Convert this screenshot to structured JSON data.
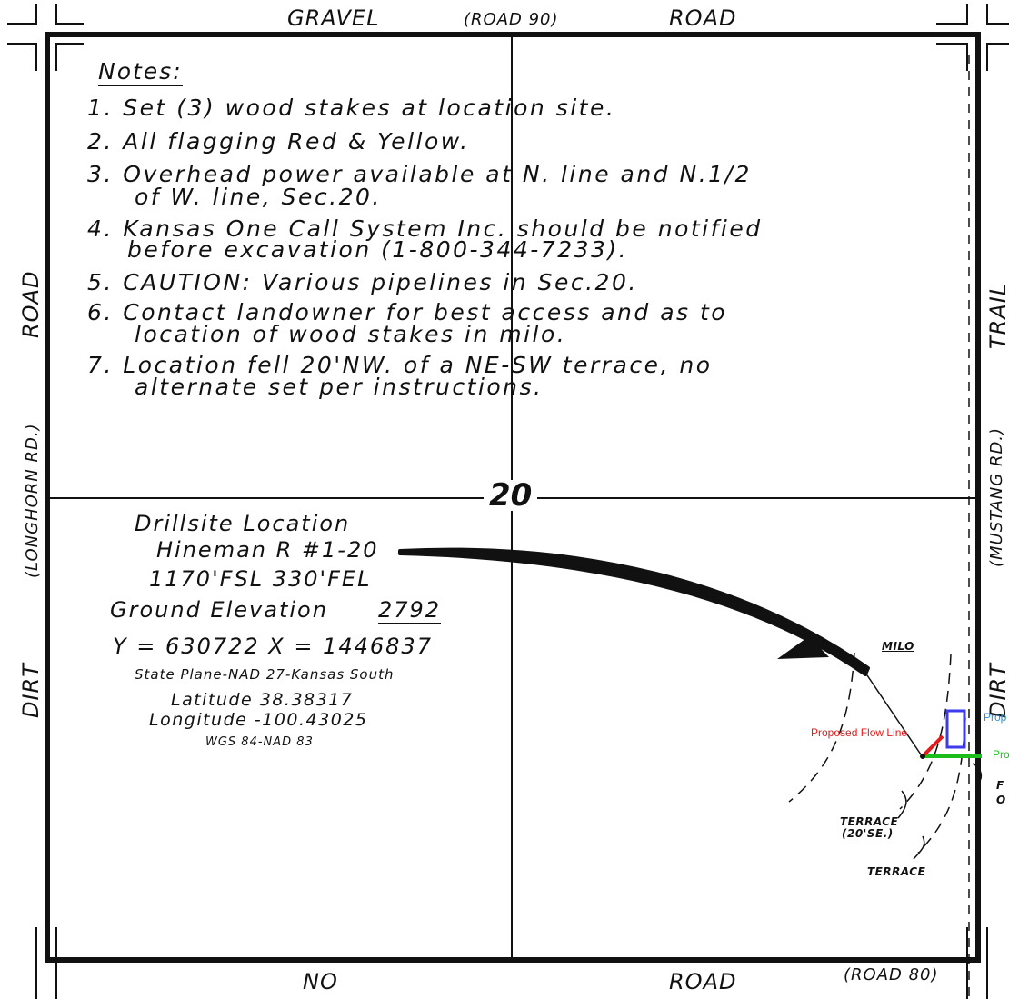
{
  "roads": {
    "top_left": "GRAVEL",
    "top_center": "(ROAD 90)",
    "top_right": "ROAD",
    "bottom_left": "NO",
    "bottom_center": "ROAD",
    "bottom_right": "(ROAD 80)",
    "left_top": "ROAD",
    "left_middle": "(LONGHORN RD.)",
    "left_bottom": "DIRT",
    "right_top": "TRAIL",
    "right_middle": "(MUSTANG RD.)",
    "right_bottom": "DIRT"
  },
  "notes": {
    "title": "Notes:",
    "lines": [
      "1. Set (3) wood stakes at location site.",
      "2. All flagging Red & Yellow.",
      "3. Overhead power available at N. line and N.1/2",
      "of W. line, Sec.20.",
      "4. Kansas One Call System Inc. should be notified",
      "before excavation (1-800-344-7233).",
      "5. CAUTION: Various pipelines in Sec.20.",
      "6. Contact landowner for best access and as to",
      "location of wood stakes in milo.",
      "7. Location fell 20'NW. of a NE-SW terrace, no",
      "alternate set per instructions."
    ]
  },
  "section_number": "20",
  "drillsite": {
    "title": "Drillsite Location",
    "well_name": "Hineman R #1-20",
    "footage": "1170'FSL  330'FEL",
    "elevation_label": "Ground Elevation",
    "elevation_value": "2792",
    "coords": "Y = 630722   X = 1446837",
    "datum": "State Plane-NAD 27-Kansas South",
    "latitude": "Latitude 38.38317",
    "longitude": "Longitude -100.43025",
    "wgs": "WGS 84-NAD 83"
  },
  "map_labels": {
    "milo": "MILO",
    "terrace_1": "TERRACE",
    "terrace_1_note": "(20'SE.)",
    "terrace_2": "TERRACE",
    "flow_line": "Proposed Flow Line",
    "green_label": "Pro",
    "blue_label": "Prop",
    "cut_1": "F",
    "cut_2": "O"
  },
  "colors": {
    "flow_line": "#e21b1b",
    "green_line": "#1bbd1b",
    "pad_box": "#3b3bf0"
  }
}
